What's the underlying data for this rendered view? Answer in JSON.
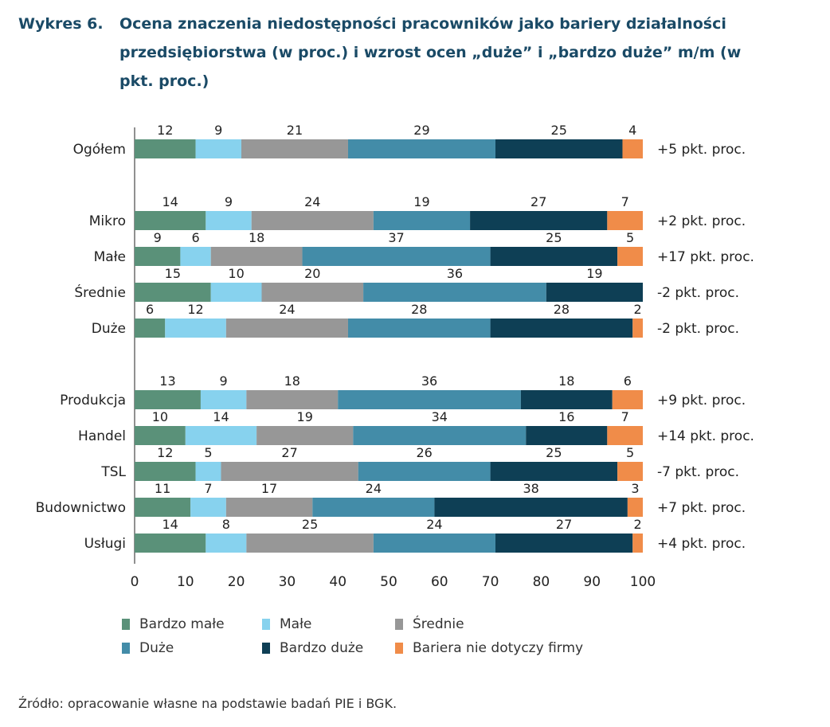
{
  "title": {
    "label": "Wykres 6.",
    "text": "Ocena znaczenia niedostępności pracowników jako bariery działalności przedsiębiorstwa (w proc.) i wzrost ocen „duże” i „bardzo duże” m/m (w pkt. proc.)"
  },
  "chart_data": {
    "type": "bar",
    "orientation": "horizontal",
    "stacked": true,
    "categories": [
      "Ogółem",
      "Mikro",
      "Małe",
      "Średnie",
      "Duże",
      "Produkcja",
      "Handel",
      "TSL",
      "Budownictwo",
      "Usługi"
    ],
    "groups": [
      [
        "Ogółem"
      ],
      [
        "Mikro",
        "Małe",
        "Średnie",
        "Duże"
      ],
      [
        "Produkcja",
        "Handel",
        "TSL",
        "Budownictwo",
        "Usługi"
      ]
    ],
    "series": [
      {
        "name": "Bardzo małe",
        "color": "#5a9179",
        "values": [
          12,
          14,
          9,
          15,
          6,
          13,
          10,
          12,
          11,
          14
        ]
      },
      {
        "name": "Małe",
        "color": "#87d2ee",
        "values": [
          9,
          9,
          6,
          10,
          12,
          9,
          14,
          5,
          7,
          8
        ]
      },
      {
        "name": "Średnie",
        "color": "#979797",
        "values": [
          21,
          24,
          18,
          20,
          24,
          18,
          19,
          27,
          17,
          25
        ]
      },
      {
        "name": "Duże",
        "color": "#438ca8",
        "values": [
          29,
          19,
          37,
          36,
          28,
          36,
          34,
          26,
          24,
          24
        ]
      },
      {
        "name": "Bardzo duże",
        "color": "#0e3f55",
        "values": [
          25,
          27,
          25,
          19,
          28,
          18,
          16,
          25,
          38,
          27
        ]
      },
      {
        "name": "Bariera nie dotyczy firmy",
        "color": "#f08c49",
        "values": [
          4,
          7,
          5,
          0,
          2,
          6,
          7,
          5,
          3,
          2
        ]
      }
    ],
    "value_labels": [
      [
        "12",
        "9",
        "21",
        "29",
        "25",
        "4"
      ],
      [
        "14",
        "9",
        "24",
        "19",
        "27",
        "7"
      ],
      [
        "9",
        "6",
        "18",
        "37",
        "25",
        "5"
      ],
      [
        "15",
        "10",
        "20",
        "36",
        "19",
        ""
      ],
      [
        "6",
        "12",
        "24",
        "28",
        "28",
        "2"
      ],
      [
        "13",
        "9",
        "18",
        "36",
        "18",
        "6"
      ],
      [
        "10",
        "14",
        "19",
        "34",
        "16",
        "7"
      ],
      [
        "12",
        "5",
        "27",
        "26",
        "25",
        "5"
      ],
      [
        "11",
        "7",
        "17",
        "24",
        "38",
        "3"
      ],
      [
        "14",
        "8",
        "25",
        "24",
        "27",
        "2"
      ]
    ],
    "annotations": [
      "+5 pkt. proc.",
      "+2 pkt. proc.",
      "+17 pkt. proc.",
      "-2 pkt. proc.",
      "-2 pkt. proc.",
      "+9 pkt. proc.",
      "+14 pkt. proc.",
      "-7 pkt. proc.",
      "+7 pkt. proc.",
      "+4 pkt. proc."
    ],
    "xlim": [
      0,
      100
    ],
    "xticks": [
      0,
      10,
      20,
      30,
      40,
      50,
      60,
      70,
      80,
      90,
      100
    ],
    "xlabel": "",
    "ylabel": "",
    "grid": false,
    "legend_position": "bottom"
  },
  "source": "Źródło: opracowanie własne na podstawie badań PIE i BGK."
}
